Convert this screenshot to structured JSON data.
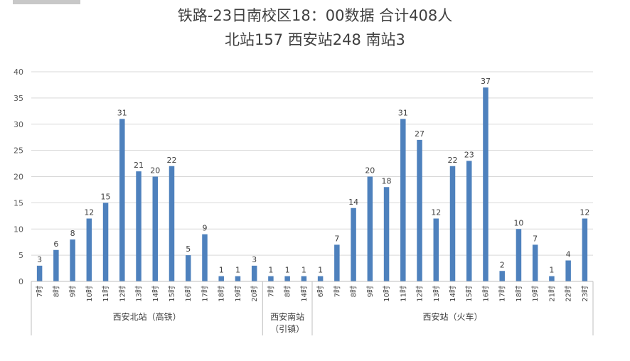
{
  "title_line1": "铁路-23日南校区18：00数据 合计408人",
  "title_line2": "北站157   西安站248   南站3",
  "chart_data": {
    "type": "bar",
    "ylim": [
      0,
      40
    ],
    "yticks": [
      0,
      5,
      10,
      15,
      20,
      25,
      30,
      35,
      40
    ],
    "grid": true,
    "bar_color": "#4e81bd",
    "groups": [
      {
        "label": "西安北站（高铁）",
        "categories": [
          "7时",
          "8时",
          "9时",
          "10时",
          "11时",
          "12时",
          "13时",
          "14时",
          "15时",
          "16时",
          "17时",
          "18时",
          "19时",
          "20时"
        ],
        "values": [
          3,
          6,
          8,
          12,
          15,
          31,
          21,
          20,
          22,
          5,
          9,
          1,
          1,
          3
        ]
      },
      {
        "label": "西安南站\n（引镇）",
        "categories": [
          "7时",
          "8时",
          "14时"
        ],
        "values": [
          1,
          1,
          1
        ]
      },
      {
        "label": "西安站（火车）",
        "categories": [
          "6时",
          "7时",
          "8时",
          "9时",
          "10时",
          "11时",
          "12时",
          "13时",
          "14时",
          "15时",
          "16时",
          "17时",
          "18时",
          "19时",
          "21时",
          "22时",
          "23时"
        ],
        "values": [
          1,
          7,
          14,
          20,
          18,
          31,
          27,
          12,
          22,
          23,
          37,
          2,
          10,
          7,
          1,
          4,
          12
        ]
      }
    ]
  }
}
